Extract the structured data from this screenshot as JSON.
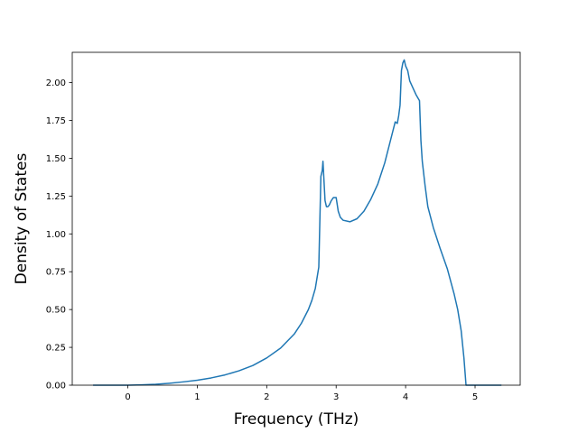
{
  "chart_data": {
    "type": "line",
    "title": "",
    "xlabel": "Frequency (THz)",
    "ylabel": "Density of States",
    "xlim": [
      -0.8,
      5.65
    ],
    "ylim": [
      0.0,
      2.2
    ],
    "x_ticks": [
      "0",
      "1",
      "2",
      "3",
      "4",
      "5"
    ],
    "y_ticks": [
      "0.00",
      "0.25",
      "0.50",
      "0.75",
      "1.00",
      "1.25",
      "1.50",
      "1.75",
      "2.00"
    ],
    "grid": false,
    "legend": "none",
    "line_color": "#1f77b4",
    "series": [
      {
        "x": [
          -0.5,
          -0.1,
          0.0,
          0.2,
          0.4,
          0.6,
          0.8,
          1.0,
          1.2,
          1.4,
          1.6,
          1.8,
          2.0,
          2.2,
          2.4,
          2.5,
          2.6,
          2.65,
          2.7,
          2.75,
          2.78,
          2.8,
          2.81,
          2.84,
          2.86,
          2.88,
          2.9,
          2.93,
          2.96,
          3.0,
          3.03,
          3.06,
          3.1,
          3.2,
          3.3,
          3.4,
          3.5,
          3.6,
          3.7,
          3.8,
          3.85,
          3.88,
          3.9,
          3.92,
          3.94,
          3.96,
          3.98,
          4.0,
          4.03,
          4.06,
          4.1,
          4.15,
          4.2,
          4.22,
          4.24,
          4.28,
          4.32,
          4.4,
          4.5,
          4.6,
          4.7,
          4.75,
          4.8,
          4.84,
          4.87,
          4.9,
          4.95,
          5.0,
          5.2,
          5.38
        ],
        "y": [
          0.0,
          0.0,
          0.0,
          0.002,
          0.006,
          0.013,
          0.022,
          0.033,
          0.048,
          0.068,
          0.095,
          0.13,
          0.18,
          0.245,
          0.34,
          0.41,
          0.5,
          0.56,
          0.64,
          0.78,
          1.38,
          1.42,
          1.48,
          1.22,
          1.18,
          1.18,
          1.19,
          1.22,
          1.24,
          1.24,
          1.15,
          1.11,
          1.09,
          1.08,
          1.1,
          1.15,
          1.23,
          1.33,
          1.47,
          1.65,
          1.74,
          1.73,
          1.78,
          1.85,
          2.08,
          2.13,
          2.15,
          2.11,
          2.08,
          2.01,
          1.97,
          1.92,
          1.88,
          1.62,
          1.48,
          1.32,
          1.18,
          1.04,
          0.9,
          0.77,
          0.6,
          0.5,
          0.36,
          0.18,
          0.0,
          0.0,
          0.0,
          0.0,
          0.0,
          0.0
        ]
      }
    ]
  }
}
